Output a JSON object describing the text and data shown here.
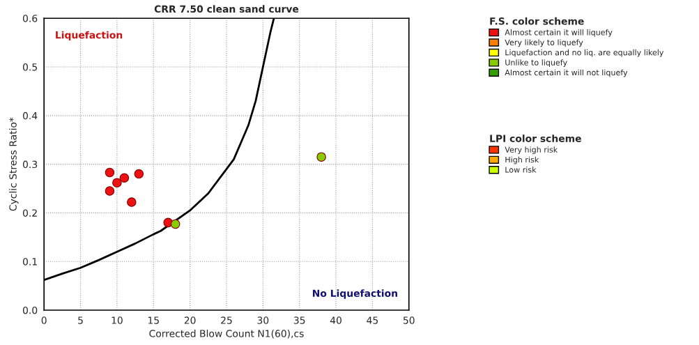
{
  "chart_data": {
    "type": "scatter",
    "title": "CRR 7.50 clean sand curve",
    "xlabel": "Corrected Blow Count N1(60),cs",
    "ylabel": "Cyclic Stress Ratio*",
    "xlim": [
      0,
      50
    ],
    "xticks": [
      0,
      5,
      10,
      15,
      20,
      25,
      30,
      35,
      40,
      45,
      50
    ],
    "ylim": [
      0,
      0.6
    ],
    "yticks": [
      {
        "value": 0,
        "label": "0.0"
      },
      0.1,
      0.2,
      0.3,
      0.4,
      0.5,
      0.6
    ],
    "grid": true,
    "legend": "right",
    "legend_title": [
      "F.S. color scheme",
      null,
      null,
      null,
      null,
      "LPI color scheme",
      null,
      null
    ],
    "marker": "circle",
    "series": [
      {
        "type": "line",
        "marker": "none",
        "color": "#000000",
        "x": [
          0,
          2.5,
          5,
          7.5,
          10,
          12.5,
          15,
          16,
          20,
          22.5,
          25,
          26,
          27,
          28,
          29,
          30,
          31,
          31.5
        ],
        "values": [
          0.062,
          0.075,
          0.087,
          0.103,
          0.12,
          0.137,
          0.156,
          0.163,
          0.205,
          0.24,
          0.29,
          0.31,
          0.345,
          0.38,
          0.43,
          0.5,
          0.57,
          0.6
        ]
      },
      {
        "name": "Almost certain it will liquefy",
        "color": "#ee1111",
        "x": [
          9,
          9,
          10,
          11,
          12,
          13,
          17
        ],
        "values": [
          0.283,
          0.245,
          0.262,
          0.272,
          0.222,
          0.28,
          0.18
        ]
      },
      {
        "name": "Very likely to liquefy",
        "color": "#ff8000"
      },
      {
        "name": "Liquefaction and no liq. are equally likely",
        "color": "#ffff00"
      },
      {
        "name": "Unlike to liquefy",
        "color": "#88cc00",
        "x": [
          18,
          38
        ],
        "values": [
          0.177,
          0.315
        ]
      },
      {
        "name": "Almost certain it will not liquefy",
        "color": "#33a000"
      },
      {
        "name": "Very high risk",
        "color": "#ff3300"
      },
      {
        "name": "High risk",
        "color": "#ffaa00"
      },
      {
        "name": "Low risk",
        "color": "#ccff00"
      }
    ],
    "annotations": [
      "Liquefaction",
      "No Liquefaction"
    ]
  }
}
